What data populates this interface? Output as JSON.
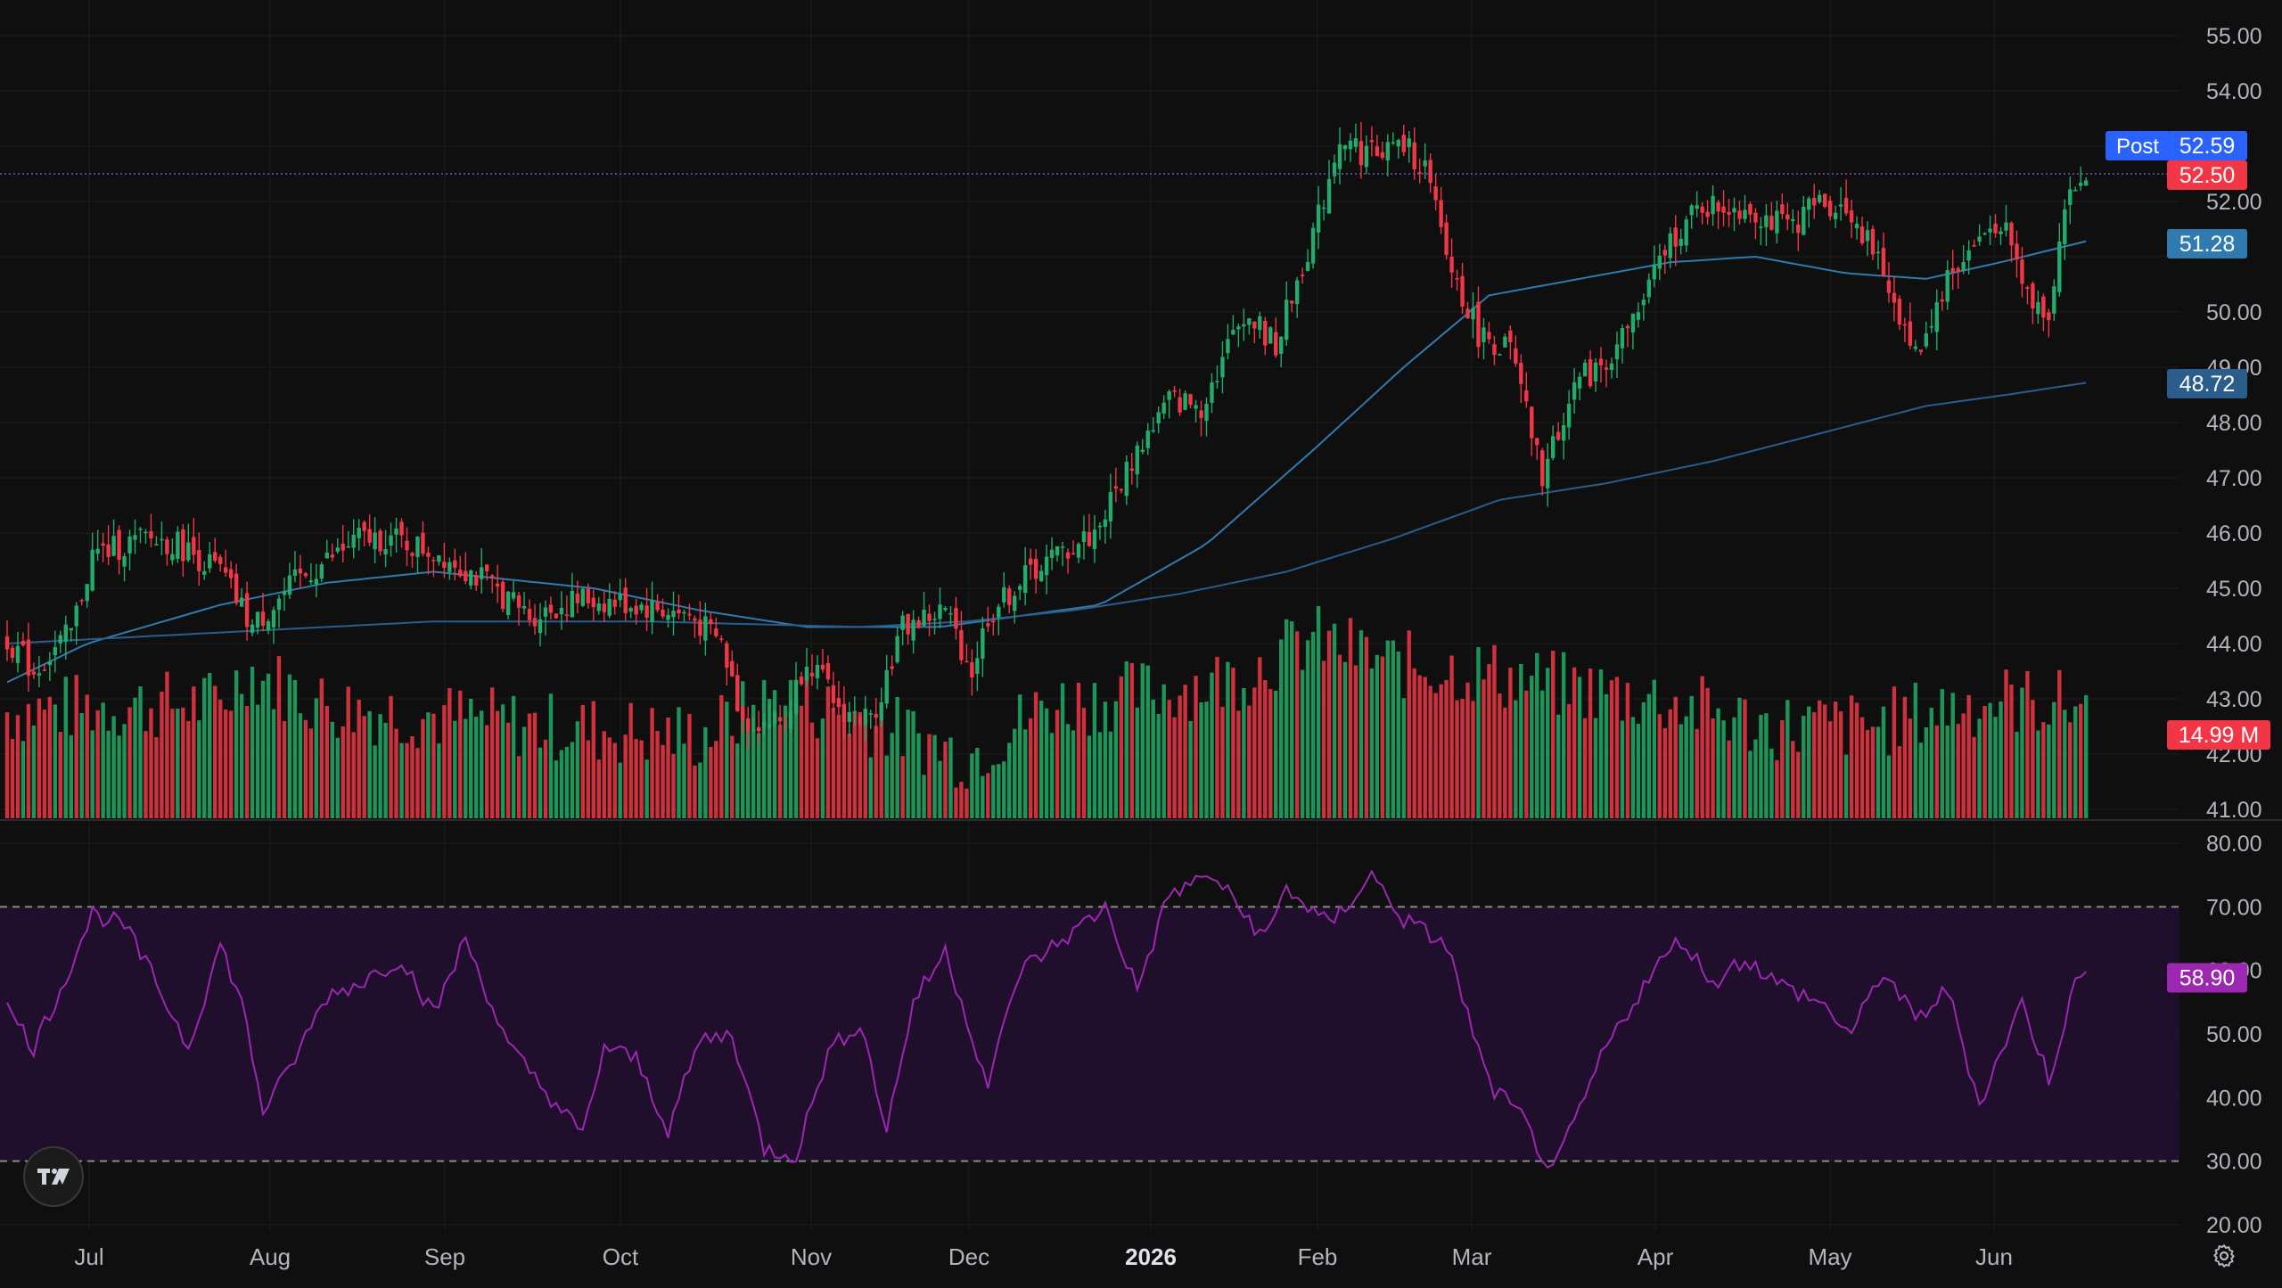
{
  "chart_data": [
    {
      "type": "candlestick",
      "title": "",
      "price_axis": {
        "ticks": [
          "55.00",
          "54.00",
          "52.00",
          "50.00",
          "49.00",
          "48.00",
          "47.00",
          "46.00",
          "45.00",
          "44.00",
          "43.00",
          "42.00",
          "41.00"
        ],
        "range": [
          40.8,
          55.5
        ]
      },
      "time_axis": {
        "labels": [
          "Jul",
          "Aug",
          "Sep",
          "Oct",
          "Nov",
          "Dec",
          "2026",
          "Feb",
          "Mar",
          "Apr",
          "May",
          "Jun"
        ],
        "bold_label": "2026"
      },
      "price_badges": [
        {
          "label": "Post",
          "value": "52.59",
          "color": "#2962ff"
        },
        {
          "value": "52.50",
          "color": "#f23645"
        },
        {
          "value": "51.28",
          "color": "#2f7bb0"
        },
        {
          "value": "48.72",
          "color": "#2a5c8c"
        },
        {
          "value": "14.99 M",
          "color": "#f23645"
        }
      ],
      "series": [
        {
          "name": "",
          "kind": "candles",
          "anchors": [
            [
              0,
              44.1
            ],
            [
              5,
              43.5
            ],
            [
              12,
              44.2
            ],
            [
              16,
              45.6
            ],
            [
              26,
              45.9
            ],
            [
              32,
              45.8
            ],
            [
              40,
              45.3
            ],
            [
              46,
              44.3
            ],
            [
              54,
              45.1
            ],
            [
              66,
              45.9
            ],
            [
              72,
              45.9
            ],
            [
              82,
              45.6
            ],
            [
              90,
              45.1
            ],
            [
              98,
              44.5
            ],
            [
              108,
              44.8
            ],
            [
              118,
              44.7
            ],
            [
              128,
              44.5
            ],
            [
              134,
              44.0
            ],
            [
              138,
              42.6
            ],
            [
              146,
              42.6
            ],
            [
              150,
              43.8
            ],
            [
              156,
              42.8
            ],
            [
              162,
              42.6
            ],
            [
              168,
              44.3
            ],
            [
              176,
              44.6
            ],
            [
              181,
              43.5
            ],
            [
              184,
              44.5
            ],
            [
              192,
              45.3
            ],
            [
              204,
              46.0
            ],
            [
              212,
              47.5
            ],
            [
              218,
              48.4
            ],
            [
              224,
              48.3
            ],
            [
              232,
              50.0
            ],
            [
              238,
              49.4
            ],
            [
              246,
              51.7
            ],
            [
              250,
              53.2
            ],
            [
              254,
              52.9
            ],
            [
              262,
              53.0
            ],
            [
              266,
              52.6
            ],
            [
              270,
              51.0
            ],
            [
              276,
              49.6
            ],
            [
              282,
              49.3
            ],
            [
              288,
              47.0
            ],
            [
              294,
              48.7
            ],
            [
              300,
              49.1
            ],
            [
              306,
              50.0
            ],
            [
              312,
              51.3
            ],
            [
              318,
              51.9
            ],
            [
              326,
              51.9
            ],
            [
              334,
              51.5
            ],
            [
              340,
              52.0
            ],
            [
              346,
              51.8
            ],
            [
              352,
              50.7
            ],
            [
              358,
              49.2
            ],
            [
              364,
              50.6
            ],
            [
              370,
              51.3
            ],
            [
              374,
              51.7
            ],
            [
              379,
              50.3
            ],
            [
              383,
              50.0
            ],
            [
              386,
              51.9
            ],
            [
              390,
              52.5
            ]
          ]
        },
        {
          "name": "",
          "kind": "ma",
          "color": "#2f7bb0",
          "anchors": [
            [
              0,
              43.3
            ],
            [
              15,
              44.0
            ],
            [
              40,
              44.7
            ],
            [
              60,
              45.1
            ],
            [
              80,
              45.3
            ],
            [
              110,
              45.0
            ],
            [
              130,
              44.6
            ],
            [
              150,
              44.3
            ],
            [
              175,
              44.3
            ],
            [
              205,
              44.7
            ],
            [
              225,
              45.8
            ],
            [
              245,
              47.5
            ],
            [
              262,
              49.0
            ],
            [
              278,
              50.3
            ],
            [
              295,
              50.6
            ],
            [
              312,
              50.9
            ],
            [
              328,
              51.0
            ],
            [
              345,
              50.7
            ],
            [
              360,
              50.6
            ],
            [
              374,
              50.9
            ],
            [
              390,
              51.28
            ]
          ]
        },
        {
          "name": "",
          "kind": "ma",
          "color": "#2a5c8c",
          "anchors": [
            [
              0,
              44.0
            ],
            [
              40,
              44.2
            ],
            [
              80,
              44.4
            ],
            [
              120,
              44.4
            ],
            [
              160,
              44.3
            ],
            [
              180,
              44.4
            ],
            [
              200,
              44.6
            ],
            [
              220,
              44.9
            ],
            [
              240,
              45.3
            ],
            [
              260,
              45.9
            ],
            [
              280,
              46.6
            ],
            [
              300,
              46.9
            ],
            [
              320,
              47.3
            ],
            [
              340,
              47.8
            ],
            [
              360,
              48.3
            ],
            [
              375,
              48.5
            ],
            [
              390,
              48.72
            ]
          ]
        },
        {
          "name": "",
          "kind": "volume",
          "anchors": [
            [
              0,
              0.52
            ],
            [
              20,
              0.55
            ],
            [
              40,
              0.56
            ],
            [
              45,
              0.72
            ],
            [
              60,
              0.55
            ],
            [
              100,
              0.45
            ],
            [
              130,
              0.4
            ],
            [
              145,
              0.6
            ],
            [
              165,
              0.45
            ],
            [
              180,
              0.3
            ],
            [
              195,
              0.55
            ],
            [
              215,
              0.62
            ],
            [
              230,
              0.68
            ],
            [
              245,
              0.88
            ],
            [
              260,
              0.75
            ],
            [
              275,
              0.72
            ],
            [
              290,
              0.65
            ],
            [
              310,
              0.58
            ],
            [
              330,
              0.45
            ],
            [
              350,
              0.45
            ],
            [
              365,
              0.55
            ],
            [
              375,
              0.58
            ],
            [
              390,
              0.55
            ]
          ]
        },
        {
          "name": "",
          "kind": "rsi",
          "color": "#9c27b0",
          "anchors": [
            [
              0,
              54
            ],
            [
              5,
              48
            ],
            [
              10,
              57
            ],
            [
              16,
              69
            ],
            [
              22,
              67
            ],
            [
              28,
              58
            ],
            [
              34,
              48
            ],
            [
              40,
              64
            ],
            [
              44,
              55
            ],
            [
              48,
              38
            ],
            [
              52,
              43
            ],
            [
              60,
              56
            ],
            [
              66,
              58
            ],
            [
              74,
              62
            ],
            [
              80,
              53
            ],
            [
              86,
              65
            ],
            [
              94,
              48
            ],
            [
              100,
              42
            ],
            [
              108,
              34
            ],
            [
              112,
              48
            ],
            [
              118,
              46
            ],
            [
              124,
              35
            ],
            [
              130,
              49
            ],
            [
              136,
              50
            ],
            [
              142,
              32
            ],
            [
              148,
              31
            ],
            [
              154,
              47
            ],
            [
              160,
              52
            ],
            [
              165,
              35
            ],
            [
              170,
              55
            ],
            [
              176,
              63
            ],
            [
              184,
              42
            ],
            [
              190,
              60
            ],
            [
              200,
              66
            ],
            [
              206,
              70
            ],
            [
              212,
              57
            ],
            [
              218,
              72
            ],
            [
              226,
              75
            ],
            [
              236,
              65
            ],
            [
              240,
              73
            ],
            [
              248,
              67
            ],
            [
              256,
              75
            ],
            [
              262,
              68
            ],
            [
              270,
              64
            ],
            [
              278,
              42
            ],
            [
              284,
              37
            ],
            [
              290,
              28
            ],
            [
              296,
              40
            ],
            [
              300,
              48
            ],
            [
              308,
              59
            ],
            [
              314,
              65
            ],
            [
              320,
              58
            ],
            [
              326,
              62
            ],
            [
              332,
              58
            ],
            [
              340,
              55
            ],
            [
              346,
              50
            ],
            [
              352,
              60
            ],
            [
              358,
              52
            ],
            [
              364,
              57
            ],
            [
              370,
              39
            ],
            [
              378,
              55
            ],
            [
              383,
              43
            ],
            [
              388,
              58
            ],
            [
              390,
              58.9
            ]
          ]
        }
      ],
      "rsi_panel": {
        "ticks": [
          "80.00",
          "70.00",
          "60.00",
          "50.00",
          "40.00",
          "30.00",
          "20.00"
        ],
        "range": [
          20,
          80
        ],
        "band": [
          30,
          70
        ],
        "current": "58.90",
        "current_color": "#9c27b0"
      }
    }
  ],
  "icons": {
    "logo": "tradingview-logo-icon",
    "settings": "gear-icon"
  }
}
